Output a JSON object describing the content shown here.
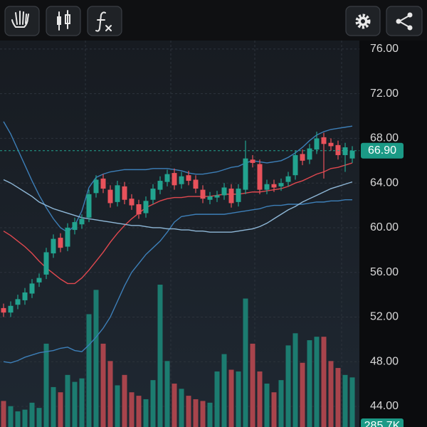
{
  "chart_data": {
    "type": "candlestick",
    "up_color": "#22a38f",
    "down_color": "#e8525b",
    "volume_up_color": "#1c7c70",
    "volume_down_color": "#a8444c",
    "open": [
      52.8,
      52.4,
      53.1,
      53.5,
      54.1,
      55.1,
      55.8,
      57.7,
      59.1,
      58.3,
      59.8,
      60.3,
      60.9,
      63.1,
      64.4,
      63.4,
      62.3,
      63.7,
      62.6,
      62.1,
      61.3,
      62.5,
      63.4,
      64.1,
      64.9,
      63.9,
      64.7,
      64.3,
      63.4,
      62.5,
      62.7,
      62.9,
      63.5,
      62.3,
      63.4,
      66.1,
      65.7,
      63.4,
      63.9,
      63.7,
      64.1,
      64.7,
      66.6,
      66.1,
      67.0,
      68.1,
      67.6,
      67.4,
      66.5,
      66.2
    ],
    "high": [
      53.2,
      53.4,
      54.0,
      54.6,
      55.4,
      55.9,
      58.2,
      59.4,
      59.5,
      60.4,
      60.9,
      61.2,
      63.4,
      64.7,
      64.8,
      63.8,
      64.2,
      64.1,
      63.0,
      62.5,
      62.8,
      63.9,
      64.6,
      65.2,
      65.3,
      65.0,
      65.1,
      64.7,
      63.8,
      63.2,
      63.3,
      64.0,
      63.9,
      63.9,
      67.8,
      66.5,
      66.1,
      64.3,
      64.3,
      64.4,
      65.0,
      66.9,
      67.0,
      67.5,
      68.6,
      68.5,
      68.0,
      67.8,
      67.6,
      67.3
    ],
    "low": [
      52.0,
      52.0,
      52.7,
      53.1,
      53.7,
      54.7,
      55.4,
      57.3,
      57.8,
      57.9,
      59.4,
      59.9,
      60.5,
      62.7,
      63.1,
      61.8,
      61.9,
      62.1,
      61.6,
      60.8,
      60.9,
      62.1,
      63.0,
      63.7,
      63.4,
      63.5,
      63.8,
      63.1,
      62.2,
      62.1,
      62.3,
      62.5,
      61.8,
      61.9,
      63.0,
      65.4,
      63.0,
      63.0,
      63.2,
      63.3,
      63.7,
      64.3,
      65.6,
      65.7,
      66.6,
      64.4,
      66.9,
      66.1,
      65.0,
      65.8
    ],
    "close": [
      52.4,
      53.0,
      53.6,
      54.2,
      55.0,
      55.5,
      57.8,
      59.0,
      58.2,
      60.0,
      60.5,
      60.8,
      63.0,
      64.3,
      63.5,
      62.2,
      63.8,
      62.5,
      62.0,
      61.2,
      62.4,
      63.5,
      64.2,
      64.8,
      63.8,
      64.6,
      64.2,
      63.5,
      62.6,
      62.8,
      62.9,
      63.6,
      62.2,
      63.5,
      66.2,
      65.8,
      63.4,
      63.9,
      63.6,
      64.0,
      64.6,
      66.5,
      66.0,
      67.1,
      68.0,
      67.5,
      67.3,
      66.5,
      67.2,
      66.9
    ],
    "volume": [
      150,
      120,
      90,
      100,
      140,
      110,
      480,
      230,
      200,
      300,
      260,
      280,
      650,
      790,
      480,
      380,
      240,
      300,
      200,
      180,
      160,
      270,
      820,
      380,
      250,
      220,
      180,
      160,
      150,
      140,
      320,
      420,
      330,
      320,
      740,
      480,
      320,
      250,
      200,
      270,
      470,
      540,
      370,
      500,
      520,
      520,
      380,
      340,
      300,
      285.7
    ],
    "volume_last_label": "285.7K",
    "lines": [
      {
        "color": "#3d7fb8",
        "values": [
          69.5,
          68.4,
          67.0,
          65.6,
          64.2,
          62.9,
          61.8,
          60.8,
          60.0,
          59.6,
          60.2,
          61.5,
          63.6,
          64.5,
          64.8,
          65.0,
          65.1,
          65.2,
          65.2,
          65.2,
          65.2,
          65.3,
          65.3,
          65.3,
          65.2,
          65.1,
          64.9,
          64.8,
          64.8,
          64.9,
          65.0,
          65.2,
          65.4,
          65.5,
          65.8,
          66.0,
          65.9,
          65.8,
          65.9,
          66.0,
          66.3,
          66.7,
          67.2,
          67.8,
          68.3,
          68.6,
          68.8,
          68.9,
          69.0,
          69.1
        ]
      },
      {
        "color": "#e0484f",
        "values": [
          59.7,
          59.3,
          58.8,
          58.3,
          57.7,
          57.0,
          56.4,
          55.9,
          55.4,
          55.0,
          55.0,
          55.5,
          56.2,
          57.0,
          57.8,
          58.7,
          59.5,
          60.2,
          60.8,
          61.3,
          61.8,
          62.1,
          62.4,
          62.6,
          62.7,
          62.7,
          62.8,
          62.8,
          62.8,
          62.8,
          62.9,
          63.0,
          63.0,
          63.0,
          63.1,
          63.2,
          63.2,
          63.3,
          63.4,
          63.5,
          63.7,
          64.0,
          64.2,
          64.5,
          64.8,
          65.0,
          65.3,
          65.4,
          65.6,
          65.8
        ]
      },
      {
        "color": "#3d7fb8",
        "values": [
          48.0,
          47.9,
          48.1,
          48.4,
          48.6,
          48.8,
          48.9,
          49.0,
          49.2,
          49.3,
          49.0,
          48.9,
          49.5,
          50.2,
          51.0,
          52.0,
          53.4,
          54.8,
          56.0,
          56.8,
          57.6,
          58.2,
          58.8,
          59.6,
          60.5,
          61.0,
          61.1,
          61.2,
          61.2,
          61.2,
          61.2,
          61.2,
          61.3,
          61.4,
          61.5,
          61.6,
          61.7,
          61.9,
          62.0,
          62.0,
          62.1,
          62.1,
          62.1,
          62.2,
          62.3,
          62.3,
          62.4,
          62.4,
          62.5,
          62.5
        ]
      },
      {
        "color": "#8fb8d8",
        "values": [
          64.3,
          64.0,
          63.6,
          63.2,
          62.8,
          62.3,
          62.0,
          61.7,
          61.5,
          61.3,
          61.1,
          60.9,
          60.8,
          60.7,
          60.6,
          60.5,
          60.4,
          60.3,
          60.2,
          60.2,
          60.1,
          60.0,
          60.0,
          59.9,
          59.9,
          59.8,
          59.8,
          59.7,
          59.7,
          59.6,
          59.6,
          59.6,
          59.6,
          59.7,
          59.8,
          59.9,
          60.1,
          60.4,
          60.8,
          61.2,
          61.6,
          61.9,
          62.3,
          62.6,
          62.9,
          63.2,
          63.5,
          63.7,
          63.9,
          64.1
        ]
      }
    ],
    "last_price": {
      "value": 66.9,
      "label": "66.90"
    },
    "ylim": [
      42.15,
      76.76
    ],
    "yticks": [
      {
        "value": 44,
        "label": "44.00"
      },
      {
        "value": 48,
        "label": "48.00"
      },
      {
        "value": 52,
        "label": "52.00"
      },
      {
        "value": 56,
        "label": "56.00"
      },
      {
        "value": 60,
        "label": "60.00"
      },
      {
        "value": 64,
        "label": "64.00"
      },
      {
        "value": 68,
        "label": "68.00"
      },
      {
        "value": 72,
        "label": "72.00"
      },
      {
        "value": 76,
        "label": "76.00"
      }
    ],
    "grid": true
  }
}
